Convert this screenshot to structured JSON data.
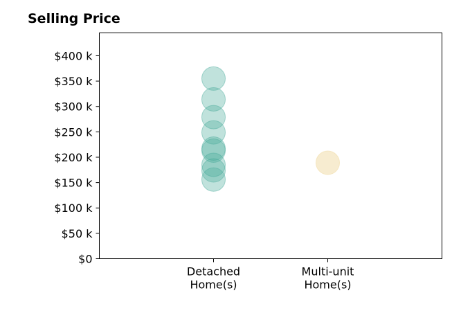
{
  "chart_data": {
    "type": "scatter",
    "title": "Selling Price",
    "xlabel": "",
    "ylabel": "",
    "categories": [
      "Detached\nHome(s)",
      "Multi-unit\nHome(s)"
    ],
    "x_range": [
      -1,
      2
    ],
    "ylim": [
      0,
      445000
    ],
    "y_ticks": [
      {
        "value": 0,
        "label": "$0"
      },
      {
        "value": 50000,
        "label": "$50 k"
      },
      {
        "value": 100000,
        "label": "$100 k"
      },
      {
        "value": 150000,
        "label": "$150 k"
      },
      {
        "value": 200000,
        "label": "$200 k"
      },
      {
        "value": 250000,
        "label": "$250 k"
      },
      {
        "value": 300000,
        "label": "$300 k"
      },
      {
        "value": 350000,
        "label": "$350 k"
      },
      {
        "value": 400000,
        "label": "$400 k"
      }
    ],
    "grid": false,
    "series": [
      {
        "category_index": 0,
        "color": "#4aab9c",
        "opacity": 0.35,
        "values": [
          355000,
          314000,
          279000,
          249000,
          217000,
          213000,
          185000,
          174000,
          156000
        ]
      },
      {
        "category_index": 1,
        "color": "#f2e0b0",
        "opacity": 0.6,
        "values": [
          189000
        ]
      }
    ]
  }
}
